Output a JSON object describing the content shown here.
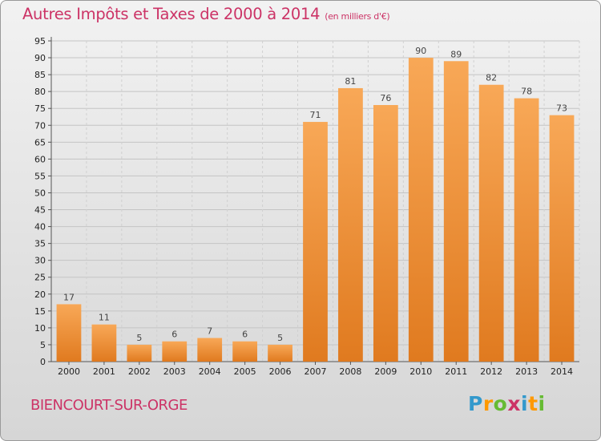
{
  "header": {
    "title": "Autres Impôts et Taxes de 2000 à 2014",
    "subtitle": "(en milliers d'€)"
  },
  "footer": {
    "commune": "BIENCOURT-SUR-ORGE",
    "logo_text": "Proxiti",
    "logo_colors": [
      "#3399cc",
      "#ff9900",
      "#66bb33",
      "#cc3366",
      "#3399cc",
      "#ff9900",
      "#66bb33"
    ]
  },
  "chart_data": {
    "type": "bar",
    "categories": [
      "2000",
      "2001",
      "2002",
      "2003",
      "2004",
      "2005",
      "2006",
      "2007",
      "2008",
      "2009",
      "2010",
      "2011",
      "2012",
      "2013",
      "2014"
    ],
    "values": [
      17,
      11,
      5,
      6,
      7,
      6,
      5,
      71,
      81,
      76,
      90,
      89,
      82,
      78,
      73
    ],
    "title": "Autres Impôts et Taxes de 2000 à 2014",
    "subtitle": "(en milliers d'€)",
    "xlabel": "",
    "ylabel": "",
    "ylim": [
      0,
      95
    ],
    "yticks": [
      0,
      5,
      10,
      15,
      20,
      25,
      30,
      35,
      40,
      45,
      50,
      55,
      60,
      65,
      70,
      75,
      80,
      85,
      90,
      95
    ],
    "grid": true,
    "data_labels": true,
    "bar_color": "#f0923a"
  }
}
